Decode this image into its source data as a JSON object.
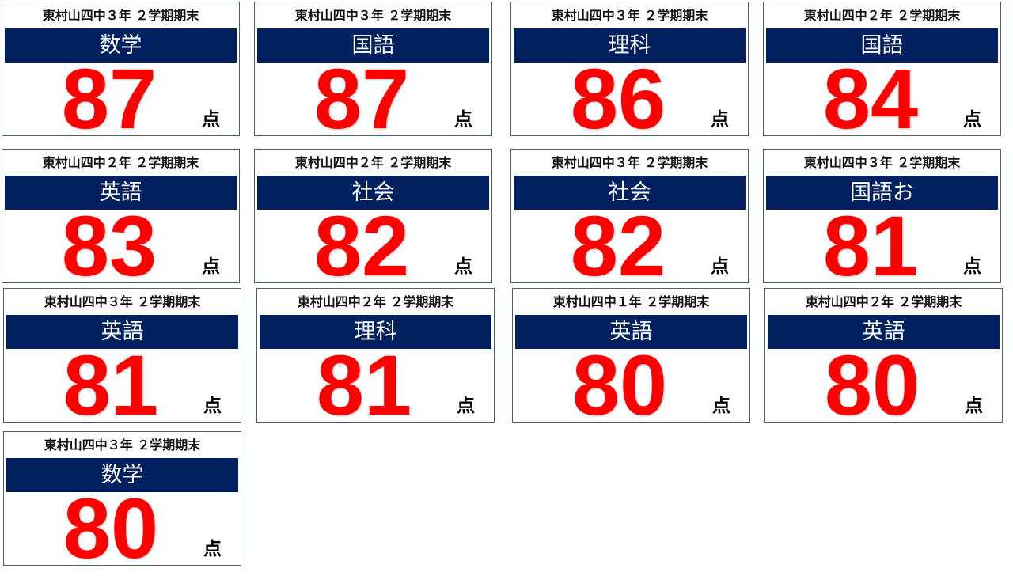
{
  "unit_label": "点",
  "colors": {
    "bar": "#002060",
    "score": "#ff0000"
  },
  "cards": [
    {
      "school": "東村山四中３年 ２学期期末",
      "subject": "数学",
      "score": "87"
    },
    {
      "school": "東村山四中３年 ２学期期末",
      "subject": "国語",
      "score": "87"
    },
    {
      "school": "東村山四中３年 ２学期期末",
      "subject": "理科",
      "score": "86"
    },
    {
      "school": "東村山四中２年 ２学期期末",
      "subject": "国語",
      "score": "84"
    },
    {
      "school": "東村山四中２年 ２学期期末",
      "subject": "英語",
      "score": "83"
    },
    {
      "school": "東村山四中２年 ２学期期末",
      "subject": "社会",
      "score": "82"
    },
    {
      "school": "東村山四中３年 ２学期期末",
      "subject": "社会",
      "score": "82"
    },
    {
      "school": "東村山四中３年 ２学期期末",
      "subject": "国語お",
      "score": "81"
    },
    {
      "school": "東村山四中３年 ２学期期末",
      "subject": "英語",
      "score": "81"
    },
    {
      "school": "東村山四中２年 ２学期期末",
      "subject": "理科",
      "score": "81"
    },
    {
      "school": "東村山四中１年 ２学期期末",
      "subject": "英語",
      "score": "80"
    },
    {
      "school": "東村山四中２年 ２学期期末",
      "subject": "英語",
      "score": "80"
    },
    {
      "school": "東村山四中３年 ２学期期末",
      "subject": "数学",
      "score": "80"
    }
  ]
}
